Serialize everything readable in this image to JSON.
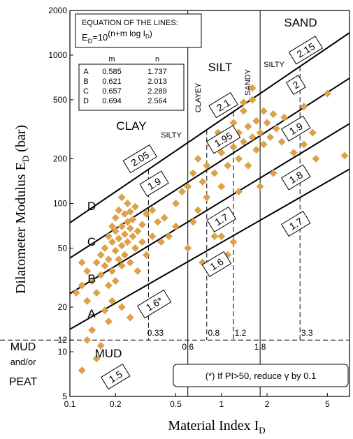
{
  "chart_data": {
    "type": "scatter",
    "color": "#dba24a",
    "xlim": [
      0.1,
      7
    ],
    "ylim": [
      5,
      2000
    ],
    "log_x": true,
    "log_y": true,
    "xticks": [
      0.1,
      0.2,
      0.5,
      1,
      2,
      5
    ],
    "yticks": [
      5,
      10,
      12,
      20,
      50,
      100,
      200,
      500,
      1000,
      2000
    ],
    "xlabel": {
      "text": "Material Index  I",
      "sub": "D"
    },
    "ylabel": {
      "text": "Dilatometer Modulus  E",
      "sub": "D",
      "after": " (bar)"
    },
    "equation": {
      "title": "EQUATION OF THE LINES:",
      "text": "E",
      "sub": "D",
      "mid": "=10",
      "sup": "(n+m log I",
      "supsub": "D",
      "end": ")"
    },
    "lines": {
      "columns": [
        "m",
        "n"
      ],
      "rows": [
        {
          "name": "A",
          "m": 0.585,
          "n": 1.737
        },
        {
          "name": "B",
          "m": 0.621,
          "n": 2.013
        },
        {
          "name": "C",
          "m": 0.657,
          "n": 2.289
        },
        {
          "name": "D",
          "m": 0.694,
          "n": 2.564
        }
      ]
    },
    "boundaries": [
      {
        "value": 0.33,
        "style": "dashed"
      },
      {
        "value": 0.6,
        "style": "solid"
      },
      {
        "value": 0.8,
        "style": "dashed"
      },
      {
        "value": 1.2,
        "style": "dashed"
      },
      {
        "value": 1.8,
        "style": "solid"
      },
      {
        "value": 3.3,
        "style": "dashed"
      }
    ],
    "horizontal_boundary": 12,
    "zones": [
      "CLAY",
      "SILTY",
      "SILT",
      "SAND",
      "SILTY",
      "CLAYEY",
      "SANDY",
      "MUD"
    ],
    "side_labels": [
      "MUD",
      "and/or",
      "PEAT"
    ],
    "gamma_labels": [
      {
        "text": "2.15",
        "at": [
          3.6,
          1080
        ]
      },
      {
        "text": "2",
        "at": [
          3.1,
          630
        ]
      },
      {
        "text": "2.1",
        "at": [
          1.03,
          460
        ]
      },
      {
        "text": "1.95",
        "at": [
          1.03,
          270
        ]
      },
      {
        "text": "1.9",
        "at": [
          3.1,
          320
        ]
      },
      {
        "text": "2.05",
        "at": [
          0.29,
          200
        ]
      },
      {
        "text": "1.9",
        "at": [
          0.36,
          136
        ]
      },
      {
        "text": "1.8",
        "at": [
          3.1,
          150
        ]
      },
      {
        "text": "1.7",
        "at": [
          1.0,
          78
        ]
      },
      {
        "text": "1.7",
        "at": [
          3.1,
          73
        ]
      },
      {
        "text": "1.6",
        "at": [
          0.93,
          39
        ]
      },
      {
        "text": "1.6*",
        "at": [
          0.36,
          21
        ]
      },
      {
        "text": "1.5",
        "at": [
          0.2,
          6.8
        ]
      }
    ],
    "note": "(*) If PI>50, reduce γ by 0.1",
    "x": [
      0.12,
      0.13,
      0.14,
      0.15,
      0.15,
      0.16,
      0.16,
      0.17,
      0.17,
      0.18,
      0.18,
      0.18,
      0.19,
      0.19,
      0.19,
      0.2,
      0.2,
      0.2,
      0.2,
      0.21,
      0.21,
      0.21,
      0.22,
      0.22,
      0.22,
      0.22,
      0.23,
      0.23,
      0.23,
      0.24,
      0.24,
      0.24,
      0.25,
      0.25,
      0.25,
      0.26,
      0.26,
      0.27,
      0.27,
      0.28,
      0.28,
      0.3,
      0.3,
      0.32,
      0.32,
      0.35,
      0.35,
      0.38,
      0.4,
      0.42,
      0.13,
      0.15,
      0.12,
      0.14,
      0.17,
      0.19,
      0.22,
      0.25,
      0.18,
      0.16,
      0.11,
      0.12,
      0.13,
      0.45,
      0.5,
      0.55,
      0.6,
      0.5,
      0.6,
      0.65,
      0.7,
      0.7,
      0.75,
      0.8,
      0.8,
      0.85,
      0.9,
      0.9,
      0.95,
      1.0,
      1.0,
      1.1,
      1.1,
      1.2,
      1.2,
      1.3,
      1.3,
      1.4,
      1.4,
      1.5,
      1.5,
      1.6,
      1.6,
      1.7,
      1.7,
      1.8,
      1.9,
      1.9,
      2.0,
      2.1,
      2.2,
      2.3,
      2.5,
      2.6,
      2.8,
      3.0,
      3.2,
      3.5,
      3.5,
      4.0,
      4.2,
      5.0,
      6.5,
      1.0,
      1.1,
      1.2,
      0.9,
      1.3,
      1.8,
      2.2,
      1.6,
      1.4,
      0.75,
      0.65
    ],
    "values": [
      28,
      35,
      30,
      40,
      25,
      45,
      33,
      50,
      38,
      60,
      42,
      28,
      55,
      70,
      35,
      65,
      48,
      80,
      30,
      58,
      90,
      42,
      52,
      70,
      110,
      38,
      62,
      85,
      45,
      75,
      55,
      100,
      68,
      40,
      88,
      60,
      78,
      50,
      95,
      65,
      35,
      72,
      55,
      85,
      45,
      60,
      90,
      75,
      55,
      80,
      12,
      9,
      7.5,
      14,
      19,
      22,
      20,
      17,
      16,
      11,
      25,
      40,
      22,
      60,
      100,
      120,
      130,
      70,
      50,
      160,
      200,
      90,
      140,
      180,
      110,
      250,
      160,
      60,
      300,
      220,
      130,
      280,
      180,
      350,
      240,
      300,
      200,
      420,
      260,
      330,
      180,
      280,
      500,
      360,
      230,
      300,
      420,
      250,
      350,
      280,
      400,
      320,
      260,
      380,
      300,
      220,
      350,
      250,
      450,
      300,
      200,
      550,
      210,
      60,
      45,
      55,
      40,
      120,
      130,
      160,
      600,
      480,
      40,
      75
    ]
  }
}
